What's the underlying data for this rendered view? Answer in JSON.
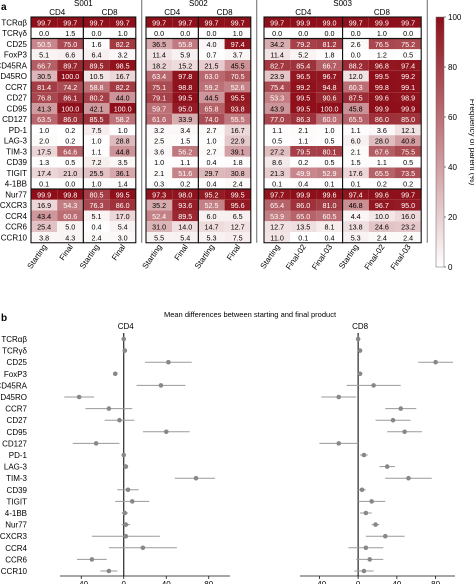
{
  "panel_labels": {
    "a": "a",
    "b": "b"
  },
  "colors": {
    "low": "#ffffff",
    "high": "#8e0f19",
    "point": "#888888",
    "ci": "#9a9a9a",
    "axis": "#111111",
    "bright_text": "#ffffff",
    "dark_text": "#000000"
  },
  "chart_data": [
    {
      "type": "heatmap",
      "markers": [
        "TCRαβ",
        "TCRγδ",
        "CD25",
        "FoxP3",
        "CD45RA",
        "CD45RO",
        "CCR7",
        "CD27",
        "CD95",
        "CD127",
        "PD-1",
        "LAG-3",
        "TIM-3",
        "CD39",
        "TIGIT",
        "4-1BB",
        "Nur77",
        "CXCR3",
        "CCR4",
        "CCR6",
        "CCR10"
      ],
      "colorbar": {
        "label": "Frequency of parent (%)",
        "ticks": [
          0,
          20,
          40,
          60,
          80,
          100
        ],
        "range": [
          0,
          100
        ]
      },
      "samples": [
        {
          "name": "S001",
          "groups": [
            {
              "name": "CD4",
              "columns": [
                {
                  "label": "Starting",
                  "values": [
                    "99.7",
                    "0.0",
                    "50.5",
                    "5.1",
                    "66.7",
                    "30.5",
                    "81.4",
                    "76.8",
                    "41.3",
                    "63.5",
                    "1.0",
                    "2.0",
                    "17.5",
                    "1.3",
                    "17.4",
                    "0.1",
                    "99.9",
                    "16.9",
                    "43.4",
                    "25.4",
                    "3.8"
                  ]
                },
                {
                  "label": "Final",
                  "values": [
                    "99.7",
                    "1.5",
                    "75.0",
                    "6.6",
                    "89.7",
                    "100.0",
                    "74.2",
                    "86.1",
                    "100.0",
                    "86.0",
                    "0.2",
                    "0.2",
                    "64.6",
                    "0.5",
                    "21.0",
                    "0.0",
                    "99.8",
                    "54.3",
                    "60.6",
                    "5.0",
                    "4.3"
                  ]
                }
              ]
            },
            {
              "name": "CD8",
              "columns": [
                {
                  "label": "Starting",
                  "values": [
                    "99.7",
                    "0.0",
                    "1.6",
                    "6.4",
                    "89.5",
                    "10.5",
                    "58.8",
                    "80.2",
                    "42.1",
                    "85.5",
                    "7.5",
                    "1.0",
                    "1.1",
                    "7.2",
                    "25.5",
                    "1.0",
                    "80.5",
                    "76.3",
                    "5.1",
                    "0.4",
                    "2.4"
                  ]
                },
                {
                  "label": "Final",
                  "values": [
                    "99.7",
                    "1.0",
                    "82.2",
                    "3.2",
                    "98.5",
                    "16.7",
                    "82.2",
                    "44.0",
                    "100.0",
                    "58.2",
                    "1.0",
                    "28.8",
                    "44.8",
                    "3.5",
                    "36.1",
                    "1.4",
                    "99.5",
                    "86.0",
                    "17.0",
                    "5.4",
                    "3.0"
                  ]
                }
              ]
            }
          ]
        },
        {
          "name": "S002",
          "groups": [
            {
              "name": "CD4",
              "columns": [
                {
                  "label": "Starting",
                  "values": [
                    "99.7",
                    "0.0",
                    "36.5",
                    "11.4",
                    "18.2",
                    "63.4",
                    "75.1",
                    "79.1",
                    "59.7",
                    "61.6",
                    "3.2",
                    "2.5",
                    "3.6",
                    "1.0",
                    "2.1",
                    "0.3",
                    "97.3",
                    "35.2",
                    "52.4",
                    "31.0",
                    "5.5"
                  ]
                },
                {
                  "label": "Final",
                  "values": [
                    "99.7",
                    "0.0",
                    "55.8",
                    "5.9",
                    "15.2",
                    "97.8",
                    "98.8",
                    "99.5",
                    "95.0",
                    "33.9",
                    "3.4",
                    "1.5",
                    "56.2",
                    "1.1",
                    "51.6",
                    "0.2",
                    "98.0",
                    "93.6",
                    "89.5",
                    "14.0",
                    "5.4"
                  ]
                }
              ]
            },
            {
              "name": "CD8",
              "columns": [
                {
                  "label": "Starting",
                  "values": [
                    "99.7",
                    "0.0",
                    "4.0",
                    "0.7",
                    "21.5",
                    "63.0",
                    "59.2",
                    "44.5",
                    "65.8",
                    "74.0",
                    "2.7",
                    "1.0",
                    "2.7",
                    "0.4",
                    "29.7",
                    "0.4",
                    "95.2",
                    "52.5",
                    "6.0",
                    "14.7",
                    "5.3"
                  ]
                },
                {
                  "label": "Final",
                  "values": [
                    "99.7",
                    "1.0",
                    "97.4",
                    "3.7",
                    "45.5",
                    "70.5",
                    "52.6",
                    "95.5",
                    "93.8",
                    "55.5",
                    "16.7",
                    "22.9",
                    "39.1",
                    "1.8",
                    "30.8",
                    "2.4",
                    "99.5",
                    "95.6",
                    "6.5",
                    "12.7",
                    "7.5"
                  ]
                }
              ]
            }
          ]
        },
        {
          "name": "S003",
          "groups": [
            {
              "name": "CD4",
              "columns": [
                {
                  "label": "Starting",
                  "values": [
                    "99.7",
                    "0.0",
                    "34.2",
                    "11.4",
                    "82.7",
                    "23.9",
                    "75.4",
                    "53.3",
                    "43.9",
                    "77.0",
                    "1.1",
                    "0.5",
                    "27.2",
                    "8.6",
                    "21.3",
                    "0.1",
                    "97.7",
                    "65.4",
                    "53.9",
                    "12.7",
                    "11.0"
                  ]
                },
                {
                  "label": "Final-02",
                  "values": [
                    "99.9",
                    "0.0",
                    "79.2",
                    "5.2",
                    "85.4",
                    "96.5",
                    "99.2",
                    "99.5",
                    "99.5",
                    "86.3",
                    "2.1",
                    "1.1",
                    "79.5",
                    "0.2",
                    "49.9",
                    "0.4",
                    "99.9",
                    "86.0",
                    "65.0",
                    "13.5",
                    "0.1"
                  ]
                },
                {
                  "label": "Final-03",
                  "values": [
                    "99.0",
                    "0.0",
                    "81.2",
                    "1.8",
                    "66.7",
                    "96.7",
                    "94.8",
                    "90.6",
                    "100.0",
                    "60.0",
                    "1.0",
                    "0.5",
                    "80.1",
                    "0.5",
                    "52.9",
                    "0.1",
                    "99.6",
                    "81.0",
                    "60.5",
                    "8.1",
                    "0.4"
                  ]
                }
              ]
            },
            {
              "name": "CD8",
              "columns": [
                {
                  "label": "Starting",
                  "values": [
                    "99.7",
                    "0.0",
                    "2.6",
                    "0.0",
                    "88.2",
                    "12.0",
                    "60.3",
                    "87.5",
                    "45.8",
                    "65.5",
                    "1.1",
                    "6.0",
                    "2.1",
                    "1.5",
                    "17.6",
                    "0.1",
                    "97.4",
                    "46.8",
                    "4.4",
                    "13.8",
                    "5.3"
                  ]
                },
                {
                  "label": "Final-02",
                  "values": [
                    "99.9",
                    "1.0",
                    "76.5",
                    "1.2",
                    "96.8",
                    "99.5",
                    "99.8",
                    "99.6",
                    "99.9",
                    "86.0",
                    "3.6",
                    "28.0",
                    "67.6",
                    "1.1",
                    "65.5",
                    "0.2",
                    "99.6",
                    "96.7",
                    "10.0",
                    "24.6",
                    "2.4"
                  ]
                },
                {
                  "label": "Final-03",
                  "values": [
                    "99.7",
                    "0.0",
                    "75.2",
                    "0.5",
                    "97.4",
                    "99.2",
                    "99.1",
                    "98.9",
                    "99.9",
                    "85.0",
                    "12.1",
                    "40.8",
                    "75.5",
                    "0.5",
                    "73.5",
                    "0.2",
                    "99.7",
                    "95.0",
                    "16.0",
                    "23.2",
                    "2.4"
                  ]
                }
              ]
            }
          ]
        }
      ]
    },
    {
      "type": "scatter",
      "title": "Mean differences between starting and final product",
      "panels": [
        {
          "name": "CD4",
          "xlim": [
            -60,
            100
          ],
          "xticks": [
            -40,
            0,
            40,
            80
          ],
          "points": [
            {
              "marker": "TCRαβ",
              "mean": 0,
              "lo": -1,
              "hi": 1
            },
            {
              "marker": "TCRγδ",
              "mean": 1,
              "lo": 0,
              "hi": 2
            },
            {
              "marker": "CD25",
              "mean": 42,
              "lo": 20,
              "hi": 64
            },
            {
              "marker": "FoxP3",
              "mean": -8,
              "lo": -10,
              "hi": -6
            },
            {
              "marker": "CD45RA",
              "mean": 35,
              "lo": 12,
              "hi": 58
            },
            {
              "marker": "CD45RO",
              "mean": -42,
              "lo": -56,
              "hi": -28
            },
            {
              "marker": "CCR7",
              "mean": -14,
              "lo": -36,
              "hi": 8
            },
            {
              "marker": "CD27",
              "mean": -4,
              "lo": -18,
              "hi": 10
            },
            {
              "marker": "CD95",
              "mean": 40,
              "lo": 18,
              "hi": 62
            },
            {
              "marker": "CD127",
              "mean": -26,
              "lo": -48,
              "hi": -4
            },
            {
              "marker": "PD-1",
              "mean": 0,
              "lo": -1,
              "hi": 1
            },
            {
              "marker": "LAG-3",
              "mean": 2,
              "lo": 0,
              "hi": 4
            },
            {
              "marker": "TIM-3",
              "mean": 68,
              "lo": 48,
              "hi": 86
            },
            {
              "marker": "CD39",
              "mean": 4,
              "lo": -6,
              "hi": 14
            },
            {
              "marker": "TIGIT",
              "mean": 8,
              "lo": -8,
              "hi": 24
            },
            {
              "marker": "4-1BB",
              "mean": 1,
              "lo": -2,
              "hi": 4
            },
            {
              "marker": "Nur77",
              "mean": 2,
              "lo": -2,
              "hi": 6
            },
            {
              "marker": "CXCR3",
              "mean": 2,
              "lo": -30,
              "hi": 34
            },
            {
              "marker": "CCR4",
              "mean": 18,
              "lo": -14,
              "hi": 50
            },
            {
              "marker": "CCR6",
              "mean": -30,
              "lo": -44,
              "hi": -16
            },
            {
              "marker": "CCR10",
              "mean": -14,
              "lo": -22,
              "hi": -6
            }
          ]
        },
        {
          "name": "CD8",
          "xlim": [
            -60,
            100
          ],
          "xticks": [
            -40,
            0,
            40,
            80
          ],
          "points": [
            {
              "marker": "TCRαβ",
              "mean": 0,
              "lo": -1,
              "hi": 1
            },
            {
              "marker": "TCRγδ",
              "mean": 2,
              "lo": 0,
              "hi": 4
            },
            {
              "marker": "CD25",
              "mean": 80,
              "lo": 62,
              "hi": 98
            },
            {
              "marker": "FoxP3",
              "mean": 2,
              "lo": 0,
              "hi": 4
            },
            {
              "marker": "CD45RA",
              "mean": 16,
              "lo": -12,
              "hi": 44
            },
            {
              "marker": "CD45RO",
              "mean": -20,
              "lo": -38,
              "hi": -2
            },
            {
              "marker": "CCR7",
              "mean": 44,
              "lo": 28,
              "hi": 60
            },
            {
              "marker": "CD27",
              "mean": 36,
              "lo": 18,
              "hi": 54
            },
            {
              "marker": "CD95",
              "mean": 48,
              "lo": 30,
              "hi": 66
            },
            {
              "marker": "CD127",
              "mean": -20,
              "lo": -40,
              "hi": 0
            },
            {
              "marker": "PD-1",
              "mean": 6,
              "lo": 2,
              "hi": 10
            },
            {
              "marker": "LAG-3",
              "mean": 30,
              "lo": 22,
              "hi": 38
            },
            {
              "marker": "TIM-3",
              "mean": 52,
              "lo": 28,
              "hi": 76
            },
            {
              "marker": "CD39",
              "mean": 4,
              "lo": 0,
              "hi": 8
            },
            {
              "marker": "TIGIT",
              "mean": 14,
              "lo": 0,
              "hi": 28
            },
            {
              "marker": "4-1BB",
              "mean": 8,
              "lo": 2,
              "hi": 14
            },
            {
              "marker": "Nur77",
              "mean": 18,
              "lo": 14,
              "hi": 22
            },
            {
              "marker": "CXCR3",
              "mean": 28,
              "lo": 8,
              "hi": 48
            },
            {
              "marker": "CCR4",
              "mean": 8,
              "lo": -10,
              "hi": 26
            },
            {
              "marker": "CCR6",
              "mean": 12,
              "lo": -2,
              "hi": 26
            },
            {
              "marker": "CCR10",
              "mean": 6,
              "lo": -4,
              "hi": 16
            }
          ]
        }
      ]
    }
  ]
}
